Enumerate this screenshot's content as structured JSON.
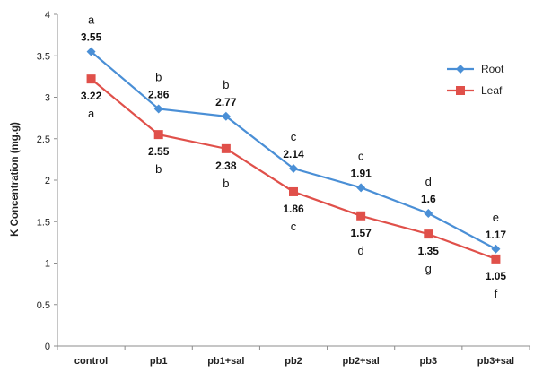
{
  "chart_data": {
    "type": "line",
    "categories": [
      "control",
      "pb1",
      "pb1+sal",
      "pb2",
      "pb2+sal",
      "pb3",
      "pb3+sal"
    ],
    "ylabel": "K Concentration (mg.g)",
    "ylim": [
      0,
      4
    ],
    "yticks": [
      "0",
      "0.5",
      "1",
      "1.5",
      "2",
      "2.5",
      "3",
      "3.5",
      "4"
    ],
    "legend_position": "top-right",
    "grid": false,
    "series": [
      {
        "name": "Root",
        "color": "#4a8fd6",
        "marker": "diamond",
        "values": [
          3.55,
          2.86,
          2.77,
          2.14,
          1.91,
          1.6,
          1.17
        ],
        "value_labels": [
          "3.55",
          "2.86",
          "2.77",
          "2.14",
          "1.91",
          "1.6",
          "1.17"
        ],
        "letters": [
          "a",
          "b",
          "b",
          "c",
          "c",
          "d",
          "e"
        ]
      },
      {
        "name": "Leaf",
        "color": "#e0504a",
        "marker": "square",
        "values": [
          3.22,
          2.55,
          2.38,
          1.86,
          1.57,
          1.35,
          1.05
        ],
        "value_labels": [
          "3.22",
          "2.55",
          "2.38",
          "1.86",
          "1.57",
          "1.35",
          "1.05"
        ],
        "letters": [
          "a",
          "b",
          "b",
          "c",
          "d",
          "g",
          "f"
        ]
      }
    ]
  }
}
